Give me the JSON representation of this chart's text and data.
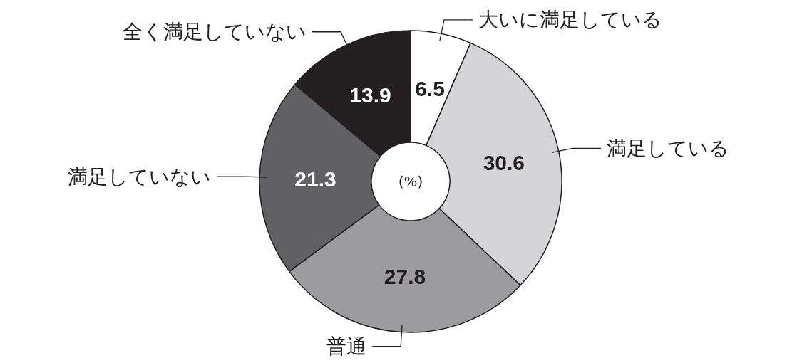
{
  "chart_data": {
    "type": "donut",
    "categories": [
      "大いに満足している",
      "満足している",
      "普通",
      "満足していない",
      "全く満足していない"
    ],
    "values": [
      6.5,
      30.6,
      27.8,
      21.3,
      13.9
    ],
    "colors": [
      "#ffffff",
      "#d4d4d6",
      "#9c9c9e",
      "#616163",
      "#231f20"
    ],
    "data_labels": true,
    "annotations": [
      "(%)"
    ]
  }
}
